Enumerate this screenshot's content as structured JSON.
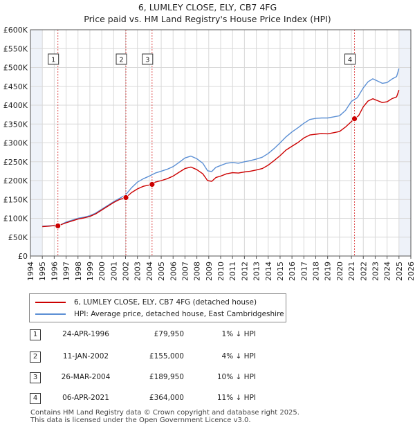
{
  "title_line1": "6, LUMLEY CLOSE, ELY, CB7 4FG",
  "title_line2": "Price paid vs. HM Land Registry's House Price Index (HPI)",
  "colors": {
    "price_paid": "#cc0000",
    "hpi": "#5b8fd4",
    "grid": "#d8d8d8",
    "plot_bg": "#eef2f9",
    "vline": "#e05050"
  },
  "chart_data": {
    "type": "line",
    "xlim": [
      1994,
      2026
    ],
    "ylim": [
      0,
      600000
    ],
    "x_ticks": [
      "1994",
      "1995",
      "1996",
      "1997",
      "1998",
      "1999",
      "2000",
      "2001",
      "2002",
      "2003",
      "2004",
      "2005",
      "2006",
      "2007",
      "2008",
      "2009",
      "2010",
      "2011",
      "2012",
      "2013",
      "2014",
      "2015",
      "2016",
      "2017",
      "2018",
      "2019",
      "2020",
      "2021",
      "2022",
      "2023",
      "2024",
      "2025",
      "2026"
    ],
    "y_ticks": [
      {
        "value": 0,
        "label": "£0"
      },
      {
        "value": 50000,
        "label": "£50K"
      },
      {
        "value": 100000,
        "label": "£100K"
      },
      {
        "value": 150000,
        "label": "£150K"
      },
      {
        "value": 200000,
        "label": "£200K"
      },
      {
        "value": 250000,
        "label": "£250K"
      },
      {
        "value": 300000,
        "label": "£300K"
      },
      {
        "value": 350000,
        "label": "£350K"
      },
      {
        "value": 400000,
        "label": "£400K"
      },
      {
        "value": 450000,
        "label": "£450K"
      },
      {
        "value": 500000,
        "label": "£500K"
      },
      {
        "value": 550000,
        "label": "£550K"
      },
      {
        "value": 600000,
        "label": "£600K"
      }
    ],
    "series": [
      {
        "name": "6, LUMLEY CLOSE, ELY, CB7 4FG (detached house)",
        "color": "#cc0000",
        "x": [
          1995.0,
          1995.5,
          1996.0,
          1996.31,
          1997.0,
          1997.5,
          1998.0,
          1998.5,
          1999.0,
          1999.5,
          2000.0,
          2000.5,
          2001.0,
          2001.5,
          2002.03,
          2002.5,
          2003.0,
          2003.5,
          2004.23,
          2004.5,
          2005.0,
          2005.5,
          2006.0,
          2006.5,
          2007.0,
          2007.5,
          2008.0,
          2008.5,
          2008.9,
          2009.25,
          2009.6,
          2010.0,
          2010.5,
          2011.0,
          2011.5,
          2012.0,
          2012.5,
          2013.0,
          2013.5,
          2014.0,
          2014.5,
          2015.0,
          2015.5,
          2016.0,
          2016.5,
          2017.0,
          2017.5,
          2018.0,
          2018.5,
          2019.0,
          2019.5,
          2020.0,
          2020.5,
          2021.26,
          2021.6,
          2022.0,
          2022.4,
          2022.8,
          2023.2,
          2023.6,
          2024.0,
          2024.4,
          2024.8,
          2025.0
        ],
        "y": [
          78000,
          79000,
          80500,
          79950,
          88000,
          93000,
          98000,
          101000,
          105000,
          112000,
          122000,
          132000,
          142000,
          150000,
          155000,
          168000,
          178000,
          185000,
          189950,
          196000,
          200000,
          205000,
          212000,
          222000,
          232000,
          236000,
          229000,
          218000,
          200000,
          198000,
          208000,
          212000,
          218000,
          221000,
          220000,
          223000,
          225000,
          228000,
          232000,
          241000,
          253000,
          266000,
          281000,
          291000,
          301000,
          313000,
          321000,
          323000,
          325000,
          324000,
          327000,
          330000,
          342000,
          364000,
          372000,
          396000,
          411000,
          417000,
          412000,
          407000,
          409000,
          417000,
          422000,
          440000
        ]
      },
      {
        "name": "HPI: Average price, detached house, East Cambridgeshire",
        "color": "#5b8fd4",
        "x": [
          1995.0,
          1995.5,
          1996.0,
          1996.5,
          1997.0,
          1997.5,
          1998.0,
          1998.5,
          1999.0,
          1999.5,
          2000.0,
          2000.5,
          2001.0,
          2001.5,
          2002.0,
          2002.5,
          2003.0,
          2003.5,
          2004.0,
          2004.5,
          2005.0,
          2005.5,
          2006.0,
          2006.5,
          2007.0,
          2007.5,
          2008.0,
          2008.5,
          2008.9,
          2009.25,
          2009.6,
          2010.0,
          2010.5,
          2011.0,
          2011.5,
          2012.0,
          2012.5,
          2013.0,
          2013.5,
          2014.0,
          2014.5,
          2015.0,
          2015.5,
          2016.0,
          2016.5,
          2017.0,
          2017.5,
          2018.0,
          2018.5,
          2019.0,
          2019.5,
          2020.0,
          2020.5,
          2021.0,
          2021.5,
          2022.0,
          2022.4,
          2022.8,
          2023.2,
          2023.6,
          2024.0,
          2024.4,
          2024.8,
          2025.0
        ],
        "y": [
          79000,
          80000,
          81000,
          82000,
          90000,
          95000,
          100000,
          103000,
          107000,
          114000,
          124000,
          134000,
          144000,
          153000,
          162000,
          181000,
          196000,
          205000,
          212000,
          220000,
          225000,
          230000,
          237000,
          248000,
          260000,
          265000,
          258000,
          246000,
          226000,
          224000,
          235000,
          240000,
          246000,
          248000,
          246000,
          250000,
          253000,
          257000,
          262000,
          272000,
          285000,
          300000,
          316000,
          329000,
          340000,
          352000,
          362000,
          365000,
          366000,
          366000,
          369000,
          372000,
          386000,
          410000,
          420000,
          446000,
          462000,
          470000,
          464000,
          458000,
          460000,
          469000,
          476000,
          497000
        ]
      }
    ],
    "sales": [
      {
        "n": "1",
        "x": 1996.31,
        "y": 79950
      },
      {
        "n": "2",
        "x": 2002.03,
        "y": 155000
      },
      {
        "n": "3",
        "x": 2004.23,
        "y": 189950
      },
      {
        "n": "4",
        "x": 2021.26,
        "y": 364000
      }
    ]
  },
  "legend": {
    "price_paid": "6, LUMLEY CLOSE, ELY, CB7 4FG (detached house)",
    "hpi": "HPI: Average price, detached house, East Cambridgeshire"
  },
  "table": [
    {
      "n": "1",
      "date": "24-APR-1996",
      "price": "£79,950",
      "hpi": "1% ↓ HPI"
    },
    {
      "n": "2",
      "date": "11-JAN-2002",
      "price": "£155,000",
      "hpi": "4% ↓ HPI"
    },
    {
      "n": "3",
      "date": "26-MAR-2004",
      "price": "£189,950",
      "hpi": "10% ↓ HPI"
    },
    {
      "n": "4",
      "date": "06-APR-2021",
      "price": "£364,000",
      "hpi": "11% ↓ HPI"
    }
  ],
  "footer": {
    "line1": "Contains HM Land Registry data © Crown copyright and database right 2025.",
    "line2": "This data is licensed under the Open Government Licence v3.0."
  }
}
